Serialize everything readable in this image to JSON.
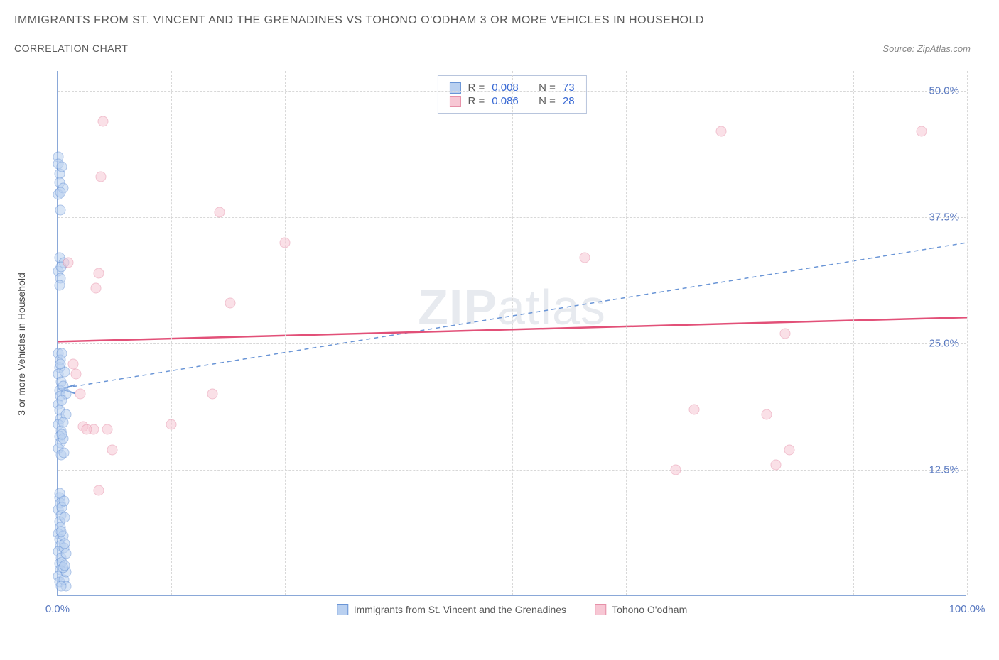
{
  "title": "IMMIGRANTS FROM ST. VINCENT AND THE GRENADINES VS TOHONO O'ODHAM 3 OR MORE VEHICLES IN HOUSEHOLD",
  "subtitle": "CORRELATION CHART",
  "source_label": "Source:",
  "source_name": "ZipAtlas.com",
  "y_axis_label": "3 or more Vehicles in Household",
  "watermark_bold": "ZIP",
  "watermark_light": "atlas",
  "chart": {
    "type": "scatter",
    "background_color": "#ffffff",
    "grid_color": "#d8d8d8",
    "axis_color": "#8aa8d8",
    "tick_label_color": "#5878c0",
    "xlim": [
      0,
      100
    ],
    "ylim": [
      0,
      52
    ],
    "y_ticks": [
      12.5,
      25.0,
      37.5,
      50.0
    ],
    "y_tick_labels": [
      "12.5%",
      "25.0%",
      "37.5%",
      "50.0%"
    ],
    "x_ticks": [
      0,
      25,
      50,
      75,
      100
    ],
    "x_tick_labels": [
      "0.0%",
      "",
      "",
      "",
      "100.0%"
    ],
    "x_minor_ticks": [
      12.5,
      37.5,
      62.5,
      87.5
    ],
    "tick_fontsize": 15,
    "label_fontsize": 14,
    "marker_radius": 7.5,
    "marker_opacity": 0.55
  },
  "series": [
    {
      "name": "Immigrants from St. Vincent and the Grenadines",
      "fill_color": "#b9d0f0",
      "stroke_color": "#6a95d6",
      "trend_color": "#6a95d6",
      "trend_dash": "6 5",
      "trend_width": 1.5,
      "trend_start_y": 20.5,
      "trend_end_y": 35.0,
      "trend_arrow": true,
      "R": "0.008",
      "N": "73",
      "points": [
        [
          0.1,
          43.5
        ],
        [
          0.1,
          42.8
        ],
        [
          0.2,
          41.8
        ],
        [
          0.2,
          41.0
        ],
        [
          0.1,
          39.8
        ],
        [
          0.3,
          38.2
        ],
        [
          0.2,
          33.5
        ],
        [
          0.1,
          32.2
        ],
        [
          0.3,
          31.5
        ],
        [
          0.2,
          30.8
        ],
        [
          0.1,
          24.0
        ],
        [
          0.3,
          23.4
        ],
        [
          0.2,
          22.6
        ],
        [
          0.1,
          22.0
        ],
        [
          0.4,
          21.2
        ],
        [
          0.2,
          20.4
        ],
        [
          0.3,
          19.8
        ],
        [
          0.1,
          19.0
        ],
        [
          0.2,
          18.4
        ],
        [
          0.3,
          17.6
        ],
        [
          0.1,
          17.0
        ],
        [
          0.4,
          16.4
        ],
        [
          0.2,
          15.8
        ],
        [
          0.3,
          15.2
        ],
        [
          0.1,
          14.6
        ],
        [
          0.2,
          9.8
        ],
        [
          0.3,
          9.2
        ],
        [
          0.1,
          8.6
        ],
        [
          0.4,
          8.0
        ],
        [
          0.2,
          7.4
        ],
        [
          0.3,
          6.8
        ],
        [
          0.1,
          6.2
        ],
        [
          0.2,
          5.6
        ],
        [
          0.3,
          5.0
        ],
        [
          0.1,
          4.4
        ],
        [
          0.4,
          3.8
        ],
        [
          0.2,
          3.2
        ],
        [
          0.3,
          2.6
        ],
        [
          0.1,
          2.0
        ],
        [
          0.2,
          1.4
        ],
        [
          0.7,
          1.6
        ],
        [
          0.9,
          1.0
        ],
        [
          0.5,
          42.5
        ],
        [
          0.6,
          40.4
        ],
        [
          0.7,
          33.0
        ],
        [
          0.8,
          22.2
        ],
        [
          0.9,
          18.0
        ],
        [
          0.6,
          15.6
        ],
        [
          0.8,
          7.8
        ],
        [
          0.7,
          4.8
        ],
        [
          0.9,
          2.4
        ],
        [
          0.5,
          8.8
        ],
        [
          0.6,
          6.0
        ],
        [
          0.9,
          20.0
        ],
        [
          0.3,
          23.0
        ],
        [
          0.5,
          16.0
        ],
        [
          0.4,
          14.0
        ],
        [
          0.2,
          10.2
        ],
        [
          0.5,
          3.4
        ],
        [
          0.6,
          2.8
        ],
        [
          0.8,
          5.2
        ],
        [
          0.3,
          40.0
        ],
        [
          0.4,
          32.6
        ],
        [
          0.5,
          19.4
        ],
        [
          0.6,
          17.2
        ],
        [
          0.7,
          9.4
        ],
        [
          0.8,
          3.0
        ],
        [
          0.4,
          6.4
        ],
        [
          0.9,
          4.2
        ],
        [
          0.5,
          24.0
        ],
        [
          0.6,
          20.8
        ],
        [
          0.7,
          14.2
        ],
        [
          0.4,
          1.0
        ]
      ]
    },
    {
      "name": "Tohono O'odham",
      "fill_color": "#f7c7d4",
      "stroke_color": "#e690a8",
      "trend_color": "#e25078",
      "trend_dash": "",
      "trend_width": 2.5,
      "trend_start_y": 25.2,
      "trend_end_y": 27.6,
      "trend_arrow": false,
      "R": "0.086",
      "N": "28",
      "points": [
        [
          5.0,
          47.0
        ],
        [
          4.8,
          41.5
        ],
        [
          1.2,
          33.0
        ],
        [
          4.5,
          32.0
        ],
        [
          4.2,
          30.5
        ],
        [
          17.8,
          38.0
        ],
        [
          25.0,
          35.0
        ],
        [
          19.0,
          29.0
        ],
        [
          2.8,
          16.8
        ],
        [
          4.0,
          16.5
        ],
        [
          5.5,
          16.5
        ],
        [
          12.5,
          17.0
        ],
        [
          6.0,
          14.5
        ],
        [
          17.0,
          20.0
        ],
        [
          4.5,
          10.5
        ],
        [
          58.0,
          33.5
        ],
        [
          70.0,
          18.5
        ],
        [
          68.0,
          12.5
        ],
        [
          73.0,
          46.0
        ],
        [
          78.0,
          18.0
        ],
        [
          80.0,
          26.0
        ],
        [
          79.0,
          13.0
        ],
        [
          80.5,
          14.5
        ],
        [
          95.0,
          46.0
        ],
        [
          1.7,
          23.0
        ],
        [
          3.2,
          16.5
        ],
        [
          2.0,
          22.0
        ],
        [
          2.5,
          20.0
        ]
      ]
    }
  ],
  "legend": {
    "R_label": "R =",
    "N_label": "N ="
  },
  "bottom_legend": {
    "label_a": "Immigrants from St. Vincent and the Grenadines",
    "label_b": "Tohono O'odham"
  }
}
